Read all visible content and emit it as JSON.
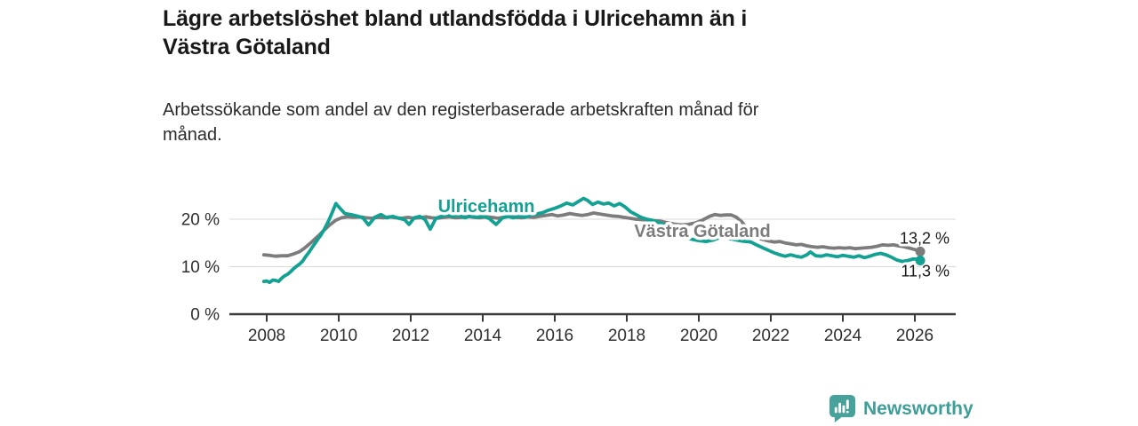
{
  "header": {
    "title_lines": [
      "Lägre arbetslöshet bland utlandsfödda i Ulricehamn än i",
      "Västra Götaland"
    ],
    "subtitle_lines": [
      "Arbetssökande som andel av den registerbaserade arbetskraften månad för",
      "månad."
    ]
  },
  "footer": {
    "brand": "Newsworthy",
    "logo_icon": "bar-chart-speech-bubble-icon",
    "brand_color": "#3f9e98"
  },
  "colors": {
    "accent_teal": "#12a192",
    "series_gray": "#7c7c7c",
    "gridline": "#d8d8d8",
    "axis": "#3a3a3a",
    "text_dark": "#1a1a1a"
  },
  "chart_data": {
    "type": "line",
    "title": "Lägre arbetslöshet bland utlandsfödda i Ulricehamn än i Västra Götaland",
    "subtitle": "Arbetssökande som andel av den registerbaserade arbetskraften månad för månad.",
    "unit": "%",
    "xlim": [
      2007.0,
      2027.1
    ],
    "ylim": [
      0,
      26
    ],
    "grid": "horizontal",
    "legend": "inline-labels",
    "x_ticks": [
      {
        "value": 2008,
        "label": "2008"
      },
      {
        "value": 2010,
        "label": "2010"
      },
      {
        "value": 2012,
        "label": "2012"
      },
      {
        "value": 2014,
        "label": "2014"
      },
      {
        "value": 2016,
        "label": "2016"
      },
      {
        "value": 2018,
        "label": "2018"
      },
      {
        "value": 2020,
        "label": "2020"
      },
      {
        "value": 2022,
        "label": "2022"
      },
      {
        "value": 2024,
        "label": "2024"
      },
      {
        "value": 2026,
        "label": "2026"
      }
    ],
    "y_ticks": [
      {
        "value": 0,
        "label": "0 %"
      },
      {
        "value": 10,
        "label": "10 %"
      },
      {
        "value": 20,
        "label": "20 %"
      }
    ],
    "series": [
      {
        "name": "Västra Götaland",
        "color": "#7c7c7c",
        "end_label": "13,2 %",
        "end_label_dy": -9,
        "points": [
          [
            2007.92,
            12.5
          ],
          [
            2008.08,
            12.4
          ],
          [
            2008.25,
            12.2
          ],
          [
            2008.42,
            12.3
          ],
          [
            2008.58,
            12.3
          ],
          [
            2008.75,
            12.7
          ],
          [
            2008.92,
            13.2
          ],
          [
            2009.08,
            14.1
          ],
          [
            2009.25,
            15.2
          ],
          [
            2009.42,
            16.4
          ],
          [
            2009.58,
            17.6
          ],
          [
            2009.75,
            18.8
          ],
          [
            2009.92,
            19.8
          ],
          [
            2010.08,
            20.3
          ],
          [
            2010.25,
            20.5
          ],
          [
            2010.42,
            20.4
          ],
          [
            2010.58,
            20.5
          ],
          [
            2010.75,
            20.3
          ],
          [
            2010.92,
            20.2
          ],
          [
            2011.08,
            20.4
          ],
          [
            2011.25,
            20.3
          ],
          [
            2011.42,
            20.5
          ],
          [
            2011.58,
            20.3
          ],
          [
            2011.75,
            20.2
          ],
          [
            2011.92,
            20.4
          ],
          [
            2012.08,
            20.2
          ],
          [
            2012.25,
            20.3
          ],
          [
            2012.42,
            20.5
          ],
          [
            2012.58,
            20.3
          ],
          [
            2012.75,
            20.2
          ],
          [
            2012.92,
            20.4
          ],
          [
            2013.08,
            20.5
          ],
          [
            2013.25,
            20.3
          ],
          [
            2013.42,
            20.4
          ],
          [
            2013.58,
            20.6
          ],
          [
            2013.75,
            20.4
          ],
          [
            2013.92,
            20.3
          ],
          [
            2014.08,
            20.5
          ],
          [
            2014.25,
            20.4
          ],
          [
            2014.42,
            20.2
          ],
          [
            2014.58,
            20.4
          ],
          [
            2014.75,
            20.6
          ],
          [
            2014.92,
            20.4
          ],
          [
            2015.08,
            20.3
          ],
          [
            2015.25,
            20.5
          ],
          [
            2015.42,
            20.4
          ],
          [
            2015.58,
            20.6
          ],
          [
            2015.75,
            20.8
          ],
          [
            2015.92,
            21.0
          ],
          [
            2016.08,
            20.7
          ],
          [
            2016.25,
            20.9
          ],
          [
            2016.42,
            21.2
          ],
          [
            2016.58,
            21.0
          ],
          [
            2016.75,
            20.8
          ],
          [
            2016.92,
            21.0
          ],
          [
            2017.08,
            21.3
          ],
          [
            2017.25,
            21.1
          ],
          [
            2017.42,
            20.9
          ],
          [
            2017.58,
            20.7
          ],
          [
            2017.75,
            20.6
          ],
          [
            2017.92,
            20.4
          ],
          [
            2018.08,
            20.2
          ],
          [
            2018.25,
            20.0
          ],
          [
            2018.42,
            19.9
          ],
          [
            2018.58,
            19.8
          ],
          [
            2018.75,
            19.7
          ],
          [
            2018.92,
            19.6
          ],
          [
            2019.1,
            19.3
          ],
          [
            2019.3,
            19.0
          ],
          [
            2019.5,
            18.8
          ],
          [
            2019.7,
            18.9
          ],
          [
            2019.9,
            19.2
          ],
          [
            2020.1,
            19.8
          ],
          [
            2020.3,
            20.6
          ],
          [
            2020.45,
            21.0
          ],
          [
            2020.6,
            20.8
          ],
          [
            2020.75,
            20.9
          ],
          [
            2020.9,
            20.9
          ],
          [
            2021.05,
            20.4
          ],
          [
            2021.2,
            19.4
          ],
          [
            2021.35,
            18.0
          ],
          [
            2021.5,
            16.8
          ],
          [
            2021.65,
            16.0
          ],
          [
            2021.8,
            15.7
          ],
          [
            2021.95,
            15.4
          ],
          [
            2022.1,
            15.2
          ],
          [
            2022.25,
            15.3
          ],
          [
            2022.4,
            15.0
          ],
          [
            2022.55,
            14.8
          ],
          [
            2022.7,
            14.6
          ],
          [
            2022.85,
            14.7
          ],
          [
            2023.0,
            14.4
          ],
          [
            2023.15,
            14.2
          ],
          [
            2023.3,
            14.1
          ],
          [
            2023.45,
            14.2
          ],
          [
            2023.6,
            14.0
          ],
          [
            2023.75,
            13.9
          ],
          [
            2023.9,
            14.0
          ],
          [
            2024.05,
            13.9
          ],
          [
            2024.2,
            14.0
          ],
          [
            2024.35,
            13.8
          ],
          [
            2024.5,
            13.9
          ],
          [
            2024.65,
            14.0
          ],
          [
            2024.8,
            14.1
          ],
          [
            2024.95,
            14.3
          ],
          [
            2025.1,
            14.6
          ],
          [
            2025.25,
            14.5
          ],
          [
            2025.4,
            14.6
          ],
          [
            2025.55,
            14.4
          ],
          [
            2025.7,
            14.2
          ],
          [
            2025.85,
            13.9
          ],
          [
            2026.0,
            13.6
          ],
          [
            2026.15,
            13.2
          ]
        ]
      },
      {
        "name": "Ulricehamn",
        "color": "#12a192",
        "end_label": "11,3 %",
        "end_label_dy": 18,
        "points": [
          [
            2007.92,
            6.9
          ],
          [
            2008.0,
            7.0
          ],
          [
            2008.08,
            6.7
          ],
          [
            2008.17,
            7.2
          ],
          [
            2008.25,
            7.1
          ],
          [
            2008.33,
            6.9
          ],
          [
            2008.42,
            7.6
          ],
          [
            2008.5,
            8.1
          ],
          [
            2008.58,
            8.4
          ],
          [
            2008.67,
            9.0
          ],
          [
            2008.75,
            9.6
          ],
          [
            2008.83,
            10.1
          ],
          [
            2008.92,
            10.6
          ],
          [
            2009.0,
            11.2
          ],
          [
            2009.08,
            12.1
          ],
          [
            2009.17,
            13.0
          ],
          [
            2009.25,
            13.9
          ],
          [
            2009.33,
            14.8
          ],
          [
            2009.42,
            15.8
          ],
          [
            2009.5,
            16.6
          ],
          [
            2009.58,
            17.6
          ],
          [
            2009.67,
            18.9
          ],
          [
            2009.75,
            20.2
          ],
          [
            2009.83,
            21.6
          ],
          [
            2009.92,
            23.3
          ],
          [
            2010.0,
            22.6
          ],
          [
            2010.17,
            21.2
          ],
          [
            2010.33,
            21.0
          ],
          [
            2010.5,
            20.7
          ],
          [
            2010.67,
            20.3
          ],
          [
            2010.83,
            18.8
          ],
          [
            2011.0,
            20.4
          ],
          [
            2011.17,
            21.0
          ],
          [
            2011.33,
            20.3
          ],
          [
            2011.5,
            20.6
          ],
          [
            2011.67,
            20.2
          ],
          [
            2011.83,
            19.9
          ],
          [
            2011.95,
            18.9
          ],
          [
            2012.1,
            20.3
          ],
          [
            2012.25,
            20.6
          ],
          [
            2012.4,
            19.9
          ],
          [
            2012.54,
            17.9
          ],
          [
            2012.7,
            20.2
          ],
          [
            2012.85,
            20.6
          ],
          [
            2013.0,
            20.9
          ],
          [
            2013.17,
            20.6
          ],
          [
            2013.33,
            20.8
          ],
          [
            2013.5,
            20.3
          ],
          [
            2013.67,
            20.7
          ],
          [
            2013.83,
            20.4
          ],
          [
            2014.0,
            20.6
          ],
          [
            2014.17,
            20.2
          ],
          [
            2014.37,
            18.9
          ],
          [
            2014.55,
            20.3
          ],
          [
            2014.7,
            20.6
          ],
          [
            2014.85,
            20.3
          ],
          [
            2015.0,
            20.7
          ],
          [
            2015.17,
            20.4
          ],
          [
            2015.33,
            20.9
          ],
          [
            2015.5,
            21.1
          ],
          [
            2015.67,
            21.4
          ],
          [
            2015.83,
            21.9
          ],
          [
            2016.0,
            22.3
          ],
          [
            2016.17,
            22.8
          ],
          [
            2016.33,
            23.4
          ],
          [
            2016.5,
            23.0
          ],
          [
            2016.67,
            23.8
          ],
          [
            2016.8,
            24.4
          ],
          [
            2016.92,
            23.9
          ],
          [
            2017.05,
            23.1
          ],
          [
            2017.2,
            23.6
          ],
          [
            2017.35,
            23.2
          ],
          [
            2017.5,
            23.4
          ],
          [
            2017.65,
            22.8
          ],
          [
            2017.8,
            23.3
          ],
          [
            2017.95,
            22.6
          ],
          [
            2018.1,
            21.6
          ],
          [
            2018.25,
            21.0
          ],
          [
            2018.4,
            20.4
          ],
          [
            2018.55,
            20.0
          ],
          [
            2018.7,
            19.8
          ],
          [
            2018.85,
            19.4
          ],
          [
            2019.0,
            19.0
          ],
          [
            2019.2,
            18.2
          ],
          [
            2019.4,
            17.2
          ],
          [
            2019.6,
            16.3
          ],
          [
            2019.8,
            15.8
          ],
          [
            2020.0,
            15.5
          ],
          [
            2020.2,
            15.3
          ],
          [
            2020.4,
            15.6
          ],
          [
            2020.6,
            16.2
          ],
          [
            2020.8,
            16.0
          ],
          [
            2021.0,
            15.7
          ],
          [
            2021.2,
            15.4
          ],
          [
            2021.45,
            15.2
          ],
          [
            2021.6,
            14.6
          ],
          [
            2021.8,
            13.9
          ],
          [
            2021.95,
            13.4
          ],
          [
            2022.1,
            12.9
          ],
          [
            2022.25,
            12.5
          ],
          [
            2022.4,
            12.2
          ],
          [
            2022.55,
            12.5
          ],
          [
            2022.7,
            12.2
          ],
          [
            2022.85,
            12.0
          ],
          [
            2023.0,
            12.5
          ],
          [
            2023.1,
            13.1
          ],
          [
            2023.25,
            12.3
          ],
          [
            2023.4,
            12.2
          ],
          [
            2023.55,
            12.5
          ],
          [
            2023.7,
            12.3
          ],
          [
            2023.85,
            12.1
          ],
          [
            2024.0,
            12.4
          ],
          [
            2024.15,
            12.2
          ],
          [
            2024.3,
            12.0
          ],
          [
            2024.45,
            12.3
          ],
          [
            2024.6,
            11.9
          ],
          [
            2024.75,
            12.2
          ],
          [
            2024.9,
            12.6
          ],
          [
            2025.05,
            12.8
          ],
          [
            2025.2,
            12.5
          ],
          [
            2025.35,
            12.0
          ],
          [
            2025.5,
            11.4
          ],
          [
            2025.65,
            11.1
          ],
          [
            2025.8,
            11.3
          ],
          [
            2025.95,
            11.6
          ],
          [
            2026.05,
            11.6
          ],
          [
            2026.15,
            11.3
          ]
        ]
      }
    ],
    "annotations": [
      {
        "text": "Ulricehamn",
        "x": 2014.1,
        "y": 21.5,
        "color": "#12a192"
      },
      {
        "text": "Västra Götaland",
        "x": 2020.1,
        "y": 16.3,
        "color": "#7c7c7c"
      }
    ]
  }
}
